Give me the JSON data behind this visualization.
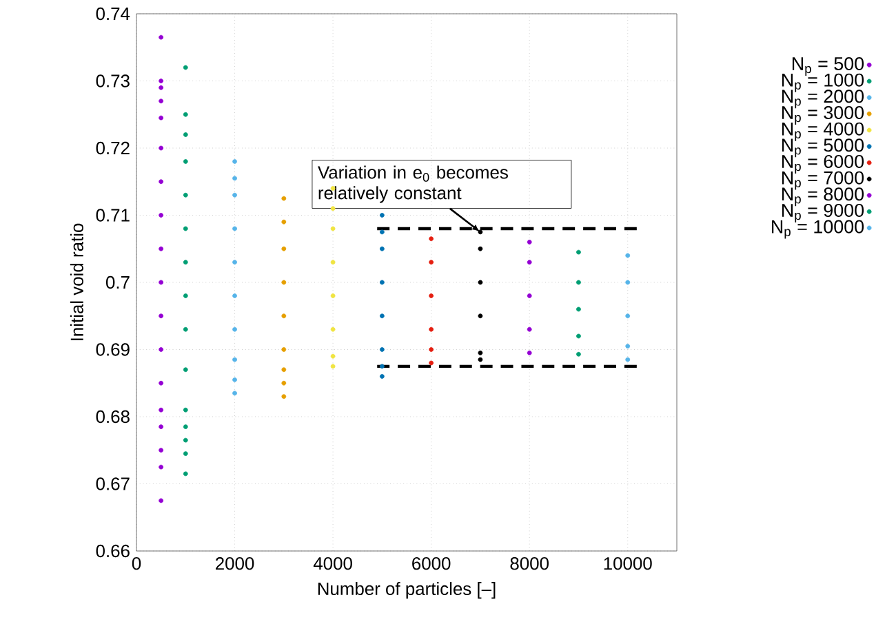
{
  "chart_data": {
    "type": "scatter",
    "xlabel": "Number of particles [–]",
    "ylabel": "Initial void ratio",
    "xlim": [
      0,
      11000
    ],
    "ylim": [
      0.66,
      0.74
    ],
    "xticks": [
      0,
      2000,
      4000,
      6000,
      8000,
      10000
    ],
    "yticks": [
      0.66,
      0.67,
      0.68,
      0.69,
      0.7,
      0.71,
      0.72,
      0.73,
      0.74
    ],
    "grid": true,
    "legend": "top right",
    "series": [
      {
        "name": "N$_{p}$ = 500",
        "color": "#9400d3",
        "marker": "circle",
        "x": [
          500,
          500,
          500,
          500,
          500,
          500,
          500,
          500,
          500,
          500,
          500,
          500,
          500,
          500,
          500,
          500,
          500,
          500
        ],
        "values": [
          0.7365,
          0.73,
          0.729,
          0.727,
          0.7245,
          0.72,
          0.715,
          0.71,
          0.705,
          0.7,
          0.695,
          0.69,
          0.685,
          0.681,
          0.6785,
          0.675,
          0.6725,
          0.6675
        ]
      },
      {
        "name": "N$_{p}$ = 1000",
        "color": "#009e73",
        "marker": "circle",
        "x": [
          1000,
          1000,
          1000,
          1000,
          1000,
          1000,
          1000,
          1000,
          1000,
          1000,
          1000,
          1000,
          1000,
          1000,
          1000
        ],
        "values": [
          0.732,
          0.725,
          0.722,
          0.718,
          0.713,
          0.708,
          0.703,
          0.698,
          0.693,
          0.687,
          0.681,
          0.6785,
          0.6765,
          0.6745,
          0.6715
        ]
      },
      {
        "name": "N$_{p}$ = 2000",
        "color": "#56b4e9",
        "marker": "circle",
        "x": [
          2000,
          2000,
          2000,
          2000,
          2000,
          2000,
          2000,
          2000,
          2000,
          2000
        ],
        "values": [
          0.718,
          0.7155,
          0.713,
          0.708,
          0.703,
          0.698,
          0.693,
          0.6885,
          0.6855,
          0.6835
        ]
      },
      {
        "name": "N$_{p}$ = 3000",
        "color": "#e69f00",
        "marker": "circle",
        "x": [
          3000,
          3000,
          3000,
          3000,
          3000,
          3000,
          3000,
          3000,
          3000
        ],
        "values": [
          0.7125,
          0.709,
          0.705,
          0.7,
          0.695,
          0.69,
          0.687,
          0.685,
          0.683
        ]
      },
      {
        "name": "N$_{p}$ = 4000",
        "color": "#f0e442",
        "marker": "circle",
        "x": [
          4000,
          4000,
          4000,
          4000,
          4000,
          4000,
          4000,
          4000
        ],
        "values": [
          0.714,
          0.711,
          0.708,
          0.703,
          0.698,
          0.693,
          0.689,
          0.6875
        ]
      },
      {
        "name": "N$_{p}$ = 5000",
        "color": "#0072b2",
        "marker": "circle",
        "x": [
          5000,
          5000,
          5000,
          5000,
          5000,
          5000,
          5000,
          5000
        ],
        "values": [
          0.71,
          0.7075,
          0.705,
          0.7,
          0.695,
          0.69,
          0.6875,
          0.686
        ]
      },
      {
        "name": "N$_{p}$ = 6000",
        "color": "#e51e10",
        "marker": "circle",
        "x": [
          6000,
          6000,
          6000,
          6000,
          6000,
          6000
        ],
        "values": [
          0.7065,
          0.703,
          0.698,
          0.693,
          0.69,
          0.688
        ]
      },
      {
        "name": "N$_{p}$ = 7000",
        "color": "#000000",
        "marker": "circle",
        "x": [
          7000,
          7000,
          7000,
          7000,
          7000,
          7000
        ],
        "values": [
          0.7075,
          0.705,
          0.7,
          0.695,
          0.6895,
          0.6885
        ]
      },
      {
        "name": "N$_{p}$ = 8000",
        "color": "#9400d3",
        "marker": "circle",
        "x": [
          8000,
          8000,
          8000,
          8000,
          8000
        ],
        "values": [
          0.706,
          0.703,
          0.698,
          0.693,
          0.6895
        ]
      },
      {
        "name": "N$_{p}$ = 9000",
        "color": "#009e73",
        "marker": "circle",
        "x": [
          9000,
          9000,
          9000,
          9000,
          9000
        ],
        "values": [
          0.7045,
          0.7,
          0.696,
          0.692,
          0.6893
        ]
      },
      {
        "name": "N$_{p}$ = 10000",
        "color": "#56b4e9",
        "marker": "circle",
        "x": [
          10000,
          10000,
          10000,
          10000,
          10000
        ],
        "values": [
          0.704,
          0.7,
          0.695,
          0.6905,
          0.6885
        ]
      },
      {
        "type": "line",
        "color": "#000000",
        "line_style": "dashed",
        "marker": "none",
        "x": [
          4900,
          10200
        ],
        "values": [
          0.708,
          0.708
        ]
      },
      {
        "type": "line",
        "color": "#000000",
        "line_style": "dashed",
        "marker": "none",
        "x": [
          4900,
          10200
        ],
        "values": [
          0.6875,
          0.6875
        ]
      }
    ],
    "annotations": [
      {
        "text": "Variation in e$_{0}$ becomes relatively constant",
        "x": 7000,
        "y": 0.7075
      }
    ]
  }
}
